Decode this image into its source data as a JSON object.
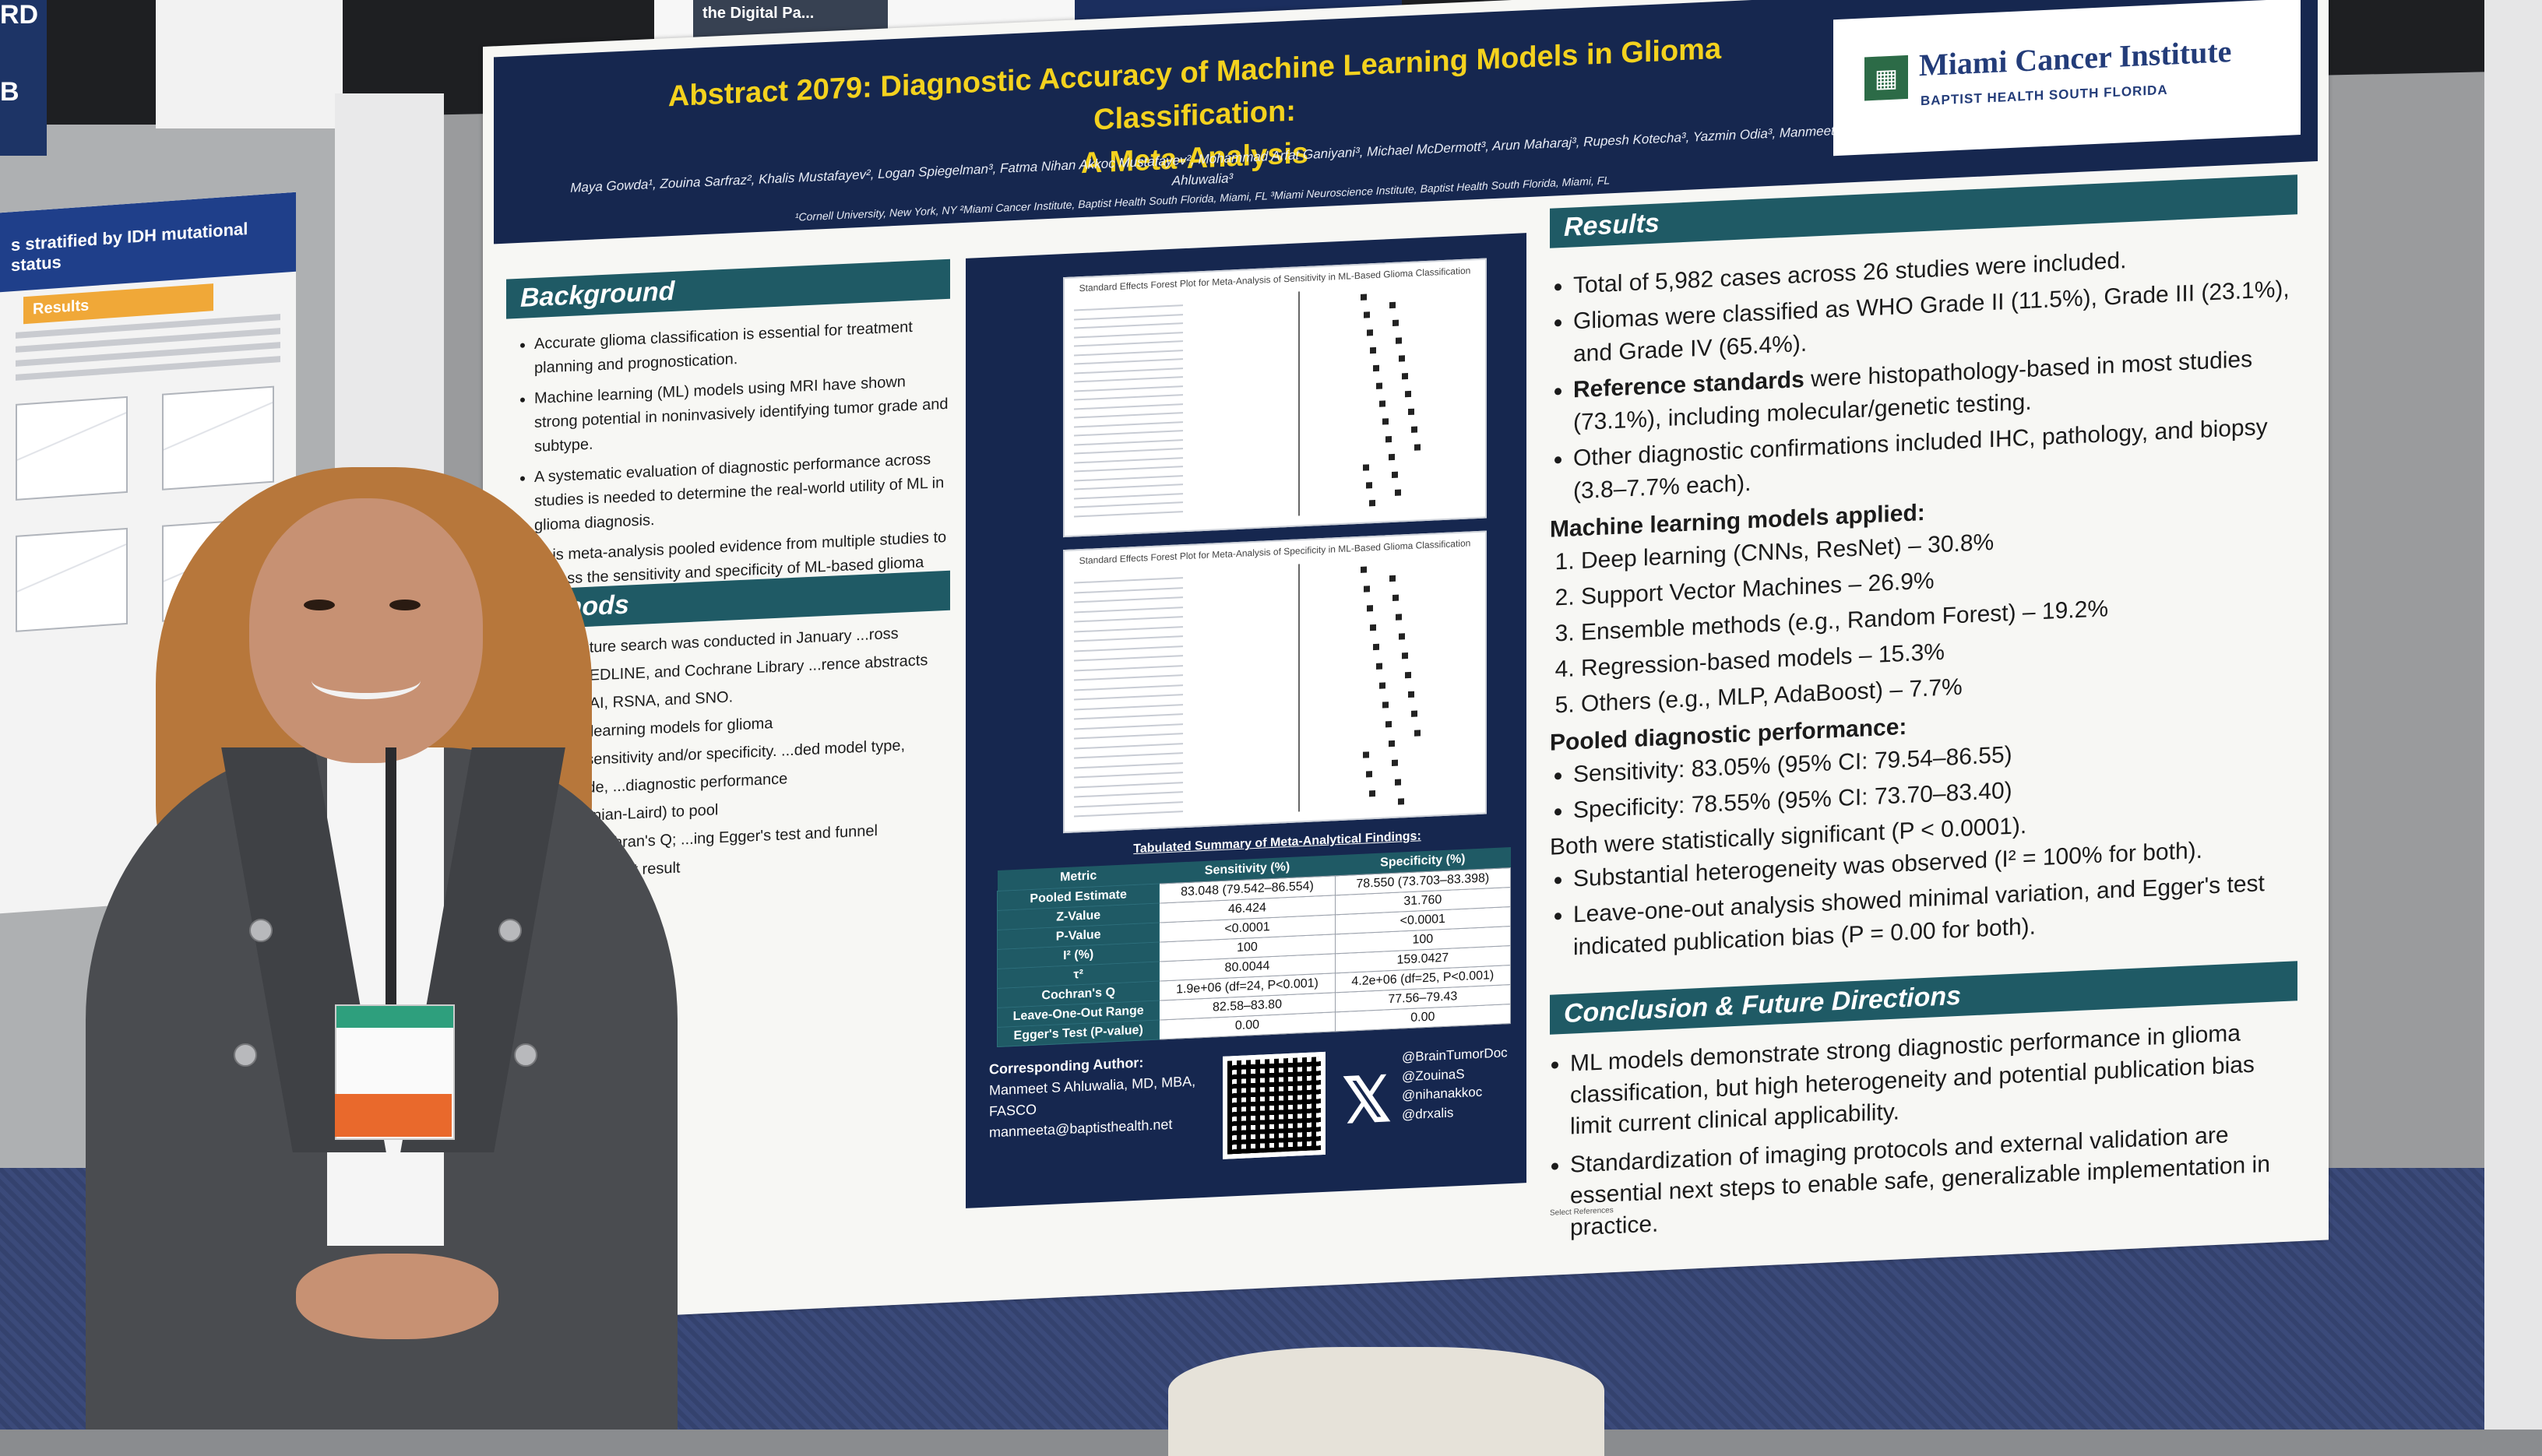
{
  "background_signs": {
    "sign_letters": [
      "RD",
      "B"
    ],
    "top_sign_text": "the Digital Pa..."
  },
  "left_poster": {
    "title": "s stratified by IDH mutational status",
    "results_tab": "Results"
  },
  "poster": {
    "title_line1": "Abstract 2079: Diagnostic Accuracy of Machine Learning Models in Glioma Classification:",
    "title_line2": "A Meta-Analysis",
    "authors": "Maya Gowda¹, Zouina Sarfraz², Khalis Mustafayev², Logan Spiegelman³, Fatma Nihan Akkoc Mustafayev², Mohammad Arfat Ganiyani³, Michael McDermott³, Arun Maharaj³, Rupesh Kotecha³, Yazmin Odia³, Manmeet Ahluwalia³",
    "affiliations": "¹Cornell University, New York, NY ²Miami Cancer Institute, Baptist Health South Florida, Miami, FL ³Miami Neuroscience Institute, Baptist Health South Florida, Miami, FL",
    "logo": {
      "name": "Miami Cancer Institute",
      "sub": "BAPTIST HEALTH SOUTH FLORIDA"
    },
    "background": {
      "heading": "Background",
      "bullets": [
        "Accurate glioma classification is essential for treatment planning and prognostication.",
        "Machine learning (ML) models using MRI have shown strong potential in noninvasively identifying tumor grade and subtype.",
        "A systematic evaluation of diagnostic performance across studies is needed to determine the real-world utility of ML in glioma diagnosis.",
        "This meta-analysis pooled evidence from multiple studies to assess the sensitivity and specificity of ML-based glioma classification models."
      ]
    },
    "methods": {
      "heading": "Methods",
      "lines": [
        "...atic literature search was conducted in January ...ross PubMed/MEDLINE, and Cochrane Library ...rence abstracts from MICCAI, RSNA, and SNO.",
        "...machine learning models for glioma",
        "...metrics: sensitivity and/or specificity. ...ded model type, glioma grade, ...diagnostic performance",
        "...(DerSimonian-Laird) to pool",
        "..., τ², and Cochran's Q; ...ing Egger's test and funnel",
        "...onducted to test result"
      ]
    },
    "forest1_title": "Standard Effects Forest Plot for Meta-Analysis of Sensitivity in ML-Based Glioma Classification",
    "forest2_title": "Standard Effects Forest Plot for Meta-Analysis of Specificity in ML-Based Glioma Classification",
    "table": {
      "title": "Tabulated Summary of Meta-Analytical Findings:",
      "headers": [
        "Metric",
        "Sensitivity (%)",
        "Specificity (%)"
      ],
      "rows": [
        [
          "Pooled Estimate",
          "83.048 (79.542–86.554)",
          "78.550 (73.703–83.398)"
        ],
        [
          "Z-Value",
          "46.424",
          "31.760"
        ],
        [
          "P-Value",
          "<0.0001",
          "<0.0001"
        ],
        [
          "I² (%)",
          "100",
          "100"
        ],
        [
          "τ²",
          "80.0044",
          "159.0427"
        ],
        [
          "Cochran's Q",
          "1.9e+06 (df=24, P<0.001)",
          "4.2e+06 (df=25, P<0.001)"
        ],
        [
          "Leave-One-Out Range",
          "82.58–83.80",
          "77.56–79.43"
        ],
        [
          "Egger's Test (P-value)",
          "0.00",
          "0.00"
        ]
      ]
    },
    "contact": {
      "heading": "Corresponding Author:",
      "name": "Manmeet S Ahluwalia, MD, MBA, FASCO",
      "email": "manmeeta@baptisthealth.net"
    },
    "handles": [
      "@BrainTumorDoc",
      "@ZouinaS",
      "@nihanakkoc",
      "@drxalis"
    ],
    "results": {
      "heading": "Results",
      "b1": "Total of 5,982 cases across 26 studies were included.",
      "b2": "Gliomas were classified as WHO Grade II (11.5%), Grade III (23.1%), and Grade IV (65.4%).",
      "b3_bold": "Reference standards",
      "b3_rest": " were histopathology-based in most studies (73.1%), including molecular/genetic testing.",
      "b4": "Other diagnostic confirmations included IHC, pathology, and biopsy (3.8–7.7% each).",
      "ml_heading": "Machine learning models applied:",
      "ml_list": [
        "Deep learning (CNNs, ResNet) – 30.8%",
        "Support Vector Machines – 26.9%",
        "Ensemble methods (e.g., Random Forest) – 19.2%",
        "Regression-based models – 15.3%",
        "Others (e.g., MLP, AdaBoost) – 7.7%"
      ],
      "pooled_heading": "Pooled diagnostic performance:",
      "pooled_list": [
        "Sensitivity: 83.05% (95% CI: 79.54–86.55)",
        "Specificity: 78.55% (95% CI: 73.70–83.40)"
      ],
      "sig_line": "Both were statistically significant (P < 0.0001).",
      "tail_list": [
        "Substantial heterogeneity was observed (I² = 100% for both).",
        "Leave-one-out analysis showed minimal variation, and Egger's test indicated publication bias (P = 0.00 for both)."
      ]
    },
    "conclusion": {
      "heading": "Conclusion & Future Directions",
      "bullets": [
        "ML models demonstrate strong diagnostic performance in glioma classification, but high heterogeneity and potential publication bias limit current clinical applicability.",
        "Standardization of imaging protocols and external validation are essential next steps to enable safe, generalizable implementation in practice."
      ]
    },
    "refs_heading": "Select References"
  },
  "colors": {
    "navy": "#16274f",
    "teal": "#1f5a65",
    "title_yellow": "#f4d21e"
  }
}
